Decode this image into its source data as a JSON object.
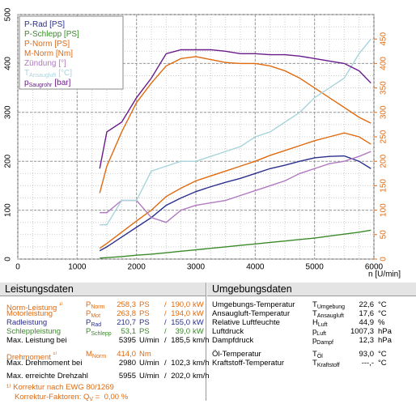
{
  "chart_data": {
    "type": "line",
    "x_label": "n [U/min]",
    "x": [
      1380,
      1500,
      1750,
      2000,
      2250,
      2500,
      2750,
      3000,
      3250,
      3500,
      3750,
      4000,
      4250,
      4500,
      4750,
      5000,
      5250,
      5500,
      5750,
      5950
    ],
    "xlim": [
      0,
      6000
    ],
    "xticks": [
      0,
      1000,
      2000,
      3000,
      4000,
      5000,
      6000
    ],
    "ylim": [
      0,
      500
    ],
    "yticks": [
      0,
      100,
      200,
      300,
      400,
      500
    ],
    "y2lim": [
      0,
      500
    ],
    "y2ticks": [
      0,
      50,
      100,
      150,
      200,
      250,
      300,
      350,
      400,
      450
    ],
    "y2color": "#e06a10",
    "grid": true,
    "legend": "upper left",
    "series": [
      {
        "name": "P-Rad [PS]",
        "color": "#2b2f8c",
        "values": [
          17,
          25,
          45,
          65,
          85,
          110,
          125,
          138,
          148,
          157,
          165,
          175,
          185,
          192,
          200,
          207,
          210,
          211,
          200,
          185
        ]
      },
      {
        "name": "P-Schlepp [PS]",
        "color": "#3a8a2a",
        "values": [
          2,
          3,
          5,
          8,
          10,
          13,
          16,
          19,
          22,
          25,
          28,
          31,
          34,
          37,
          40,
          43,
          47,
          51,
          55,
          59
        ]
      },
      {
        "name": "P-Norm [PS]",
        "color": "#e06a10",
        "values": [
          22,
          32,
          55,
          78,
          100,
          128,
          145,
          160,
          170,
          180,
          190,
          200,
          212,
          222,
          232,
          242,
          250,
          258,
          250,
          235
        ]
      },
      {
        "name": "M-Norm [Nm]",
        "color": "#e06a10",
        "values": [
          135,
          190,
          260,
          320,
          360,
          395,
          410,
          414,
          408,
          402,
          400,
          400,
          395,
          385,
          370,
          350,
          330,
          310,
          290,
          278
        ]
      },
      {
        "name": "Zündung [°]",
        "color": "#b07ac0",
        "values": [
          95,
          95,
          120,
          120,
          85,
          75,
          100,
          110,
          115,
          120,
          130,
          140,
          150,
          160,
          175,
          185,
          195,
          200,
          210,
          220
        ]
      },
      {
        "name": "T",
        "name_sub": "Ansaugluft",
        "name_unit": "[°C]",
        "color": "#a8d4dc",
        "values": [
          70,
          70,
          120,
          120,
          180,
          190,
          200,
          200,
          210,
          220,
          230,
          250,
          260,
          280,
          300,
          330,
          350,
          370,
          420,
          450
        ]
      },
      {
        "name": "p",
        "name_sub": "Saugrohr",
        "name_unit": "[bar]",
        "color": "#6a1a8a",
        "values": [
          185,
          260,
          280,
          330,
          370,
          420,
          428,
          428,
          428,
          425,
          420,
          420,
          418,
          418,
          415,
          410,
          405,
          400,
          385,
          360
        ]
      }
    ]
  },
  "left_table": {
    "title": "Leistungsdaten",
    "rows": [
      {
        "label": "Norm-Leistung",
        "note": "¹⁾",
        "sym": "P",
        "sub": "Norm",
        "v1": "258,3",
        "u1": "PS",
        "sep": "/",
        "v2": "190,0",
        "u2": "kW",
        "color": "#e06a10"
      },
      {
        "label": "Motorleistung",
        "sym": "P",
        "sub": "Mot",
        "v1": "263,8",
        "u1": "PS",
        "sep": "/",
        "v2": "194,0",
        "u2": "kW",
        "color": "#e06a10"
      },
      {
        "label": "Radleistung",
        "sym": "P",
        "sub": "Rad",
        "v1": "210,7",
        "u1": "PS",
        "sep": "/",
        "v2": "155,0",
        "u2": "kW",
        "color": "#2b2f8c"
      },
      {
        "label": "Schleppleistung",
        "sym": "P",
        "sub": "Schlepp",
        "v1": "53,1",
        "u1": "PS",
        "sep": "/",
        "v2": "39,0",
        "u2": "kW",
        "color": "#3a8a2a"
      },
      {
        "label": "Max. Leistung bei",
        "v1": "5395",
        "u1": "U/min",
        "sep": "/",
        "v2": "185,5",
        "u2": "km/h",
        "color": "#000000"
      },
      {
        "label": "Drehmoment",
        "note": "¹⁾",
        "sym": "M",
        "sub": "Norm",
        "v1": "414,0",
        "u1": "Nm",
        "color": "#e06a10"
      },
      {
        "label": "Max. Drehmoment bei",
        "v1": "2980",
        "u1": "U/min",
        "sep": "/",
        "v2": "102,3",
        "u2": "km/h",
        "color": "#000000"
      },
      {
        "label": "Max. erreichte Drehzahl",
        "v1": "5955",
        "u1": "U/min",
        "sep": "/",
        "v2": "202,0",
        "u2": "km/h",
        "color": "#000000"
      }
    ],
    "footnote": "¹⁾ Korrektur nach EWG 80/1269",
    "factors": {
      "label": "Korrektur-Faktoren:",
      "sym": "Q",
      "sub": "V",
      "eq": "=",
      "value": "0,00 %"
    }
  },
  "right_table": {
    "title": "Umgebungsdaten",
    "rows": [
      {
        "label": "Umgebungs-Temperatur",
        "sym": "T",
        "sub": "Umgebung",
        "v1": "22,6",
        "u1": "°C"
      },
      {
        "label": "Ansaugluft-Temperatur",
        "sym": "T",
        "sub": "Ansaugluft",
        "v1": "17,6",
        "u1": "°C"
      },
      {
        "label": "Relative Luftfeuchte",
        "sym": "H",
        "sub": "Luft",
        "v1": "44,9",
        "u1": "%"
      },
      {
        "label": "Luftdruck",
        "sym": "p",
        "sub": "Luft",
        "v1": "1007,3",
        "u1": "hPa"
      },
      {
        "label": "Dampfdruck",
        "sym": "p",
        "sub": "Dampf",
        "v1": "12,3",
        "u1": "hPa"
      },
      {
        "label": "Öl-Temperatur",
        "sym": "T",
        "sub": "Öl",
        "v1": "93,0",
        "u1": "°C"
      },
      {
        "label": "Kraftstoff-Temperatur",
        "sym": "T",
        "sub": "Kraftstoff",
        "v1": "---,-",
        "u1": "°C"
      }
    ]
  }
}
